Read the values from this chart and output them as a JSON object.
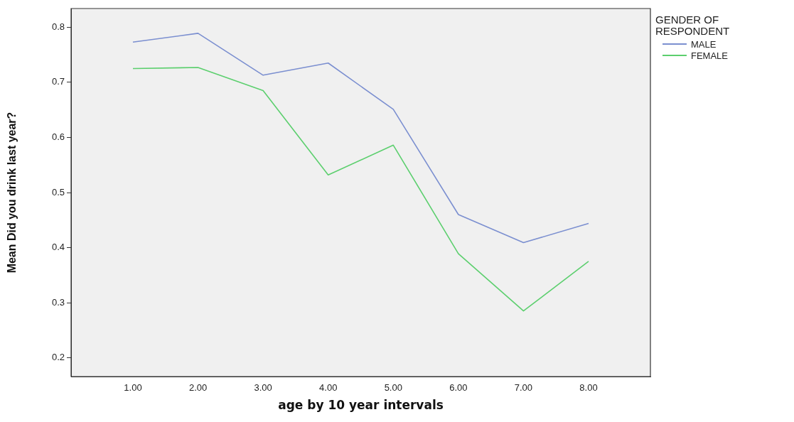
{
  "chart_data": {
    "type": "line",
    "xlabel": "age by 10 year intervals",
    "ylabel": "Mean Did you drink last year?",
    "legend_title": "GENDER OF RESPONDENT",
    "legend": "right",
    "x": [
      1,
      2,
      3,
      4,
      5,
      6,
      7,
      8
    ],
    "xlim": [
      0.05,
      8.95
    ],
    "xticks": [
      {
        "value": 1,
        "label": "1.00"
      },
      {
        "value": 2,
        "label": "2.00"
      },
      {
        "value": 3,
        "label": "3.00"
      },
      {
        "value": 4,
        "label": "4.00"
      },
      {
        "value": 5,
        "label": "5.00"
      },
      {
        "value": 6,
        "label": "6.00"
      },
      {
        "value": 7,
        "label": "7.00"
      },
      {
        "value": 8,
        "label": "8.00"
      }
    ],
    "ylim": [
      0.166,
      0.834
    ],
    "yticks": [
      0.2,
      0.3,
      0.4,
      0.5,
      0.6,
      0.7,
      0.8
    ],
    "grid": false,
    "marker": "none",
    "line_style": "solid",
    "series": [
      {
        "name": "MALE",
        "color": "#7b8fd0",
        "values": [
          0.773,
          0.789,
          0.713,
          0.735,
          0.651,
          0.46,
          0.409,
          0.444
        ]
      },
      {
        "name": "FEMALE",
        "color": "#5ccf6e",
        "values": [
          0.725,
          0.727,
          0.685,
          0.532,
          0.586,
          0.389,
          0.285,
          0.375
        ]
      }
    ]
  }
}
